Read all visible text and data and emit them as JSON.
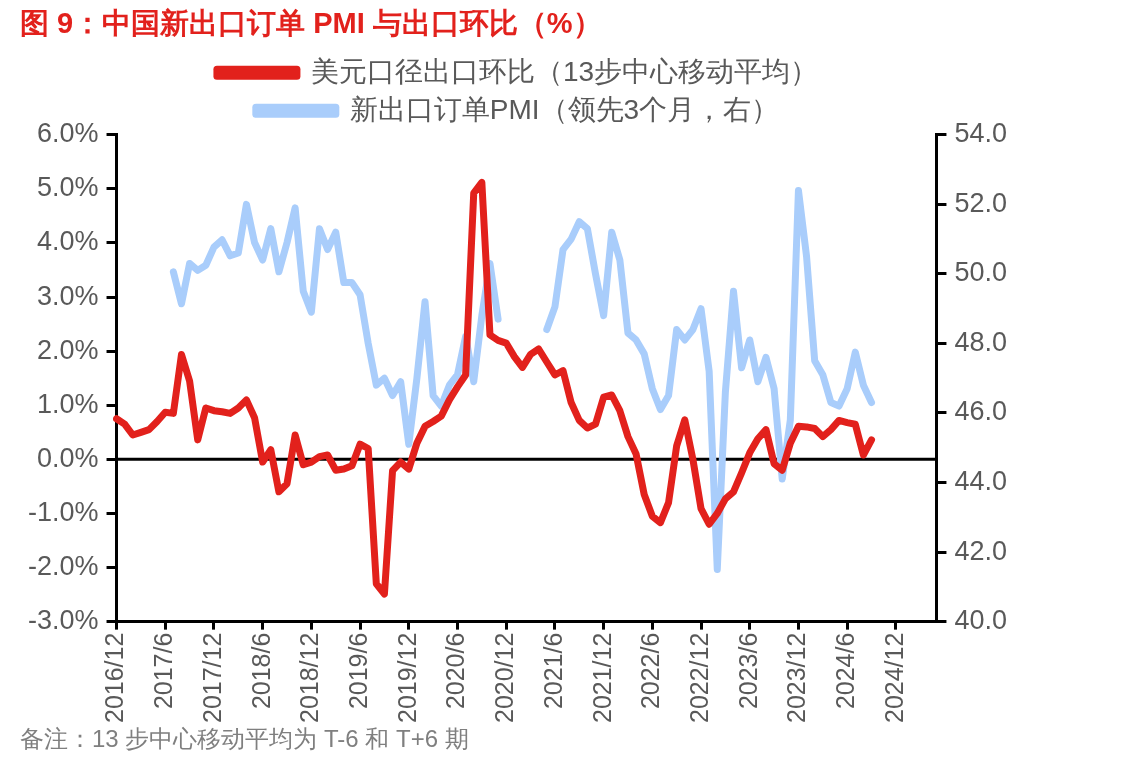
{
  "chart_data": {
    "type": "line",
    "title": "图 9：中国新出口订单 PMI 与出口环比（%）",
    "categories": [
      "2016/12",
      null,
      null,
      null,
      null,
      null,
      "2017/6",
      null,
      null,
      null,
      null,
      null,
      "2017/12",
      null,
      null,
      null,
      null,
      null,
      "2018/6",
      null,
      null,
      null,
      null,
      null,
      "2018/12",
      null,
      null,
      null,
      null,
      null,
      "2019/6",
      null,
      null,
      null,
      null,
      null,
      "2019/12",
      null,
      null,
      null,
      null,
      null,
      "2020/6",
      null,
      null,
      null,
      null,
      null,
      "2020/12",
      null,
      null,
      null,
      null,
      null,
      "2021/6",
      null,
      null,
      null,
      null,
      null,
      "2021/12",
      null,
      null,
      null,
      null,
      null,
      "2022/6",
      null,
      null,
      null,
      null,
      null,
      "2022/12",
      null,
      null,
      null,
      null,
      null,
      "2023/6",
      null,
      null,
      null,
      null,
      null,
      "2023/12",
      null,
      null,
      null,
      null,
      null,
      "2024/6",
      null,
      null,
      null,
      null,
      null,
      "2024/12",
      null,
      null,
      null,
      null,
      null
    ],
    "series": [
      {
        "name": "美元口径出口环比（13步中心移动平均）",
        "color": "#e2211c",
        "values": [
          0.75,
          0.65,
          0.45,
          0.5,
          0.55,
          0.7,
          0.87,
          0.85,
          1.94,
          1.45,
          0.36,
          0.95,
          0.9,
          0.88,
          0.85,
          0.95,
          1.1,
          0.77,
          -0.05,
          0.18,
          -0.6,
          -0.45,
          0.45,
          -0.1,
          -0.05,
          0.05,
          0.08,
          -0.2,
          -0.18,
          -0.12,
          0.28,
          0.2,
          -2.3,
          -2.49,
          -0.21,
          -0.05,
          -0.18,
          0.3,
          0.61,
          0.7,
          0.8,
          1.1,
          1.34,
          1.56,
          4.92,
          5.12,
          2.3,
          2.2,
          2.15,
          1.9,
          1.7,
          1.94,
          2.04,
          1.8,
          1.56,
          1.64,
          1.05,
          0.72,
          0.58,
          0.65,
          1.15,
          1.19,
          0.9,
          0.42,
          0.1,
          -0.65,
          -1.05,
          -1.17,
          -0.8,
          0.25,
          0.73,
          0.0,
          -0.91,
          -1.2,
          -1.0,
          -0.73,
          -0.6,
          -0.25,
          0.12,
          0.38,
          0.55,
          -0.08,
          -0.2,
          0.3,
          0.61,
          0.6,
          0.57,
          0.42,
          0.55,
          0.72,
          0.68,
          0.65,
          0.08,
          0.36,
          null,
          null,
          null,
          null,
          null,
          null,
          null,
          null
        ]
      },
      {
        "name": "新出口订单PMI（领先3个月，右）",
        "color": "#a9cdfb",
        "axis": "y2",
        "values": [
          null,
          null,
          null,
          null,
          null,
          null,
          null,
          50.06,
          49.14,
          50.3,
          50.1,
          50.25,
          50.77,
          50.98,
          50.52,
          50.6,
          52.0,
          50.9,
          50.4,
          51.3,
          50.06,
          50.9,
          51.9,
          49.5,
          48.9,
          51.3,
          50.7,
          51.2,
          49.75,
          49.75,
          49.4,
          48.0,
          46.8,
          47.0,
          46.5,
          46.9,
          45.1,
          47.0,
          49.2,
          46.5,
          46.2,
          46.8,
          47.1,
          48.2,
          46.9,
          48.8,
          50.3,
          48.7,
          null,
          null,
          null,
          null,
          null,
          48.4,
          49.05,
          50.7,
          51.0,
          51.5,
          51.3,
          50.0,
          48.8,
          51.2,
          50.4,
          48.3,
          48.1,
          47.7,
          46.7,
          46.1,
          46.5,
          48.4,
          48.1,
          48.4,
          49.0,
          47.2,
          41.5,
          46.6,
          49.5,
          47.3,
          48.1,
          46.9,
          47.6,
          46.7,
          44.1,
          45.8,
          52.4,
          50.5,
          47.5,
          47.1,
          46.3,
          46.2,
          46.7,
          47.75,
          46.8,
          46.3,
          null,
          null,
          null,
          null,
          null,
          null,
          null,
          null
        ]
      }
    ],
    "ylim": [
      -3,
      6
    ],
    "yticks": [
      {
        "value": 6,
        "label": "6.0%"
      },
      {
        "value": 5,
        "label": "5.0%"
      },
      {
        "value": 4,
        "label": "4.0%"
      },
      {
        "value": 3,
        "label": "3.0%"
      },
      {
        "value": 2,
        "label": "2.0%"
      },
      {
        "value": 1,
        "label": "1.0%"
      },
      {
        "value": 0,
        "label": "0.0%"
      },
      {
        "value": -1,
        "label": "-1.0%"
      },
      {
        "value": -2,
        "label": "-2.0%"
      },
      {
        "value": -3,
        "label": "-3.0%"
      }
    ],
    "y2lim": [
      40,
      54
    ],
    "y2ticks": [
      {
        "value": 54,
        "label": "54.0"
      },
      {
        "value": 52,
        "label": "52.0"
      },
      {
        "value": 50,
        "label": "50.0"
      },
      {
        "value": 48,
        "label": "48.0"
      },
      {
        "value": 46,
        "label": "46.0"
      },
      {
        "value": 44,
        "label": "44.0"
      },
      {
        "value": 42,
        "label": "42.0"
      },
      {
        "value": 40,
        "label": "40.0"
      }
    ],
    "ref_lines": [
      {
        "axis": "y",
        "value": 0,
        "color": "#000000"
      }
    ],
    "legend": "top",
    "grid": false,
    "annotations": [
      "备注：13 步中心移动平均为 T-6 和 T+6 期"
    ]
  }
}
